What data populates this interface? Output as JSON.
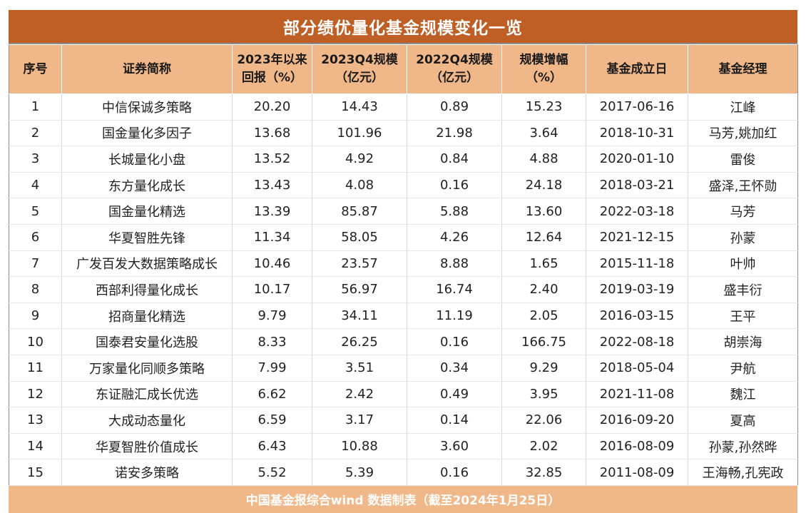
{
  "title": "部分绩优量化基金规模变化一览",
  "headers": [
    [
      "序号"
    ],
    [
      "证券简称"
    ],
    [
      "2023年以来",
      "回报（%）"
    ],
    [
      "2023Q4规模",
      "（亿元）"
    ],
    [
      "2022Q4规模",
      "（亿元）"
    ],
    [
      "规模增幅",
      "（%）"
    ],
    [
      "基金成立日"
    ],
    [
      "基金经理"
    ]
  ],
  "rows": [
    [
      "1",
      "中信保诚多策略",
      "20.20",
      "14.43",
      "0.89",
      "15.23",
      "2017-06-16",
      "江峰"
    ],
    [
      "2",
      "国金量化多因子",
      "13.68",
      "101.96",
      "21.98",
      "3.64",
      "2018-10-31",
      "马芳,姚加红"
    ],
    [
      "3",
      "长城量化小盘",
      "13.52",
      "4.92",
      "0.84",
      "4.88",
      "2020-01-10",
      "雷俊"
    ],
    [
      "4",
      "东方量化成长",
      "13.43",
      "4.08",
      "0.16",
      "24.18",
      "2018-03-21",
      "盛泽,王怀勋"
    ],
    [
      "5",
      "国金量化精选",
      "13.39",
      "85.87",
      "5.88",
      "13.60",
      "2022-03-18",
      "马芳"
    ],
    [
      "6",
      "华夏智胜先锋",
      "11.34",
      "58.05",
      "4.26",
      "12.64",
      "2021-12-15",
      "孙蒙"
    ],
    [
      "7",
      "广发百发大数据策略成长",
      "10.46",
      "23.57",
      "8.88",
      "1.65",
      "2015-11-18",
      "叶帅"
    ],
    [
      "8",
      "西部利得量化成长",
      "10.17",
      "56.97",
      "16.74",
      "2.40",
      "2019-03-19",
      "盛丰衍"
    ],
    [
      "9",
      "招商量化精选",
      "9.79",
      "34.11",
      "11.19",
      "2.05",
      "2016-03-15",
      "王平"
    ],
    [
      "10",
      "国泰君安量化选股",
      "8.33",
      "26.25",
      "0.16",
      "166.75",
      "2022-08-18",
      "胡崇海"
    ],
    [
      "11",
      "万家量化同顺多策略",
      "7.99",
      "3.51",
      "0.34",
      "9.29",
      "2018-05-04",
      "尹航"
    ],
    [
      "12",
      "东证融汇成长优选",
      "6.62",
      "2.42",
      "0.49",
      "3.95",
      "2021-11-08",
      "魏江"
    ],
    [
      "13",
      "大成动态量化",
      "6.59",
      "3.17",
      "0.14",
      "22.06",
      "2016-09-20",
      "夏高"
    ],
    [
      "14",
      "华夏智胜价值成长",
      "6.43",
      "10.88",
      "3.60",
      "2.02",
      "2016-08-09",
      "孙蒙,孙然晔"
    ],
    [
      "15",
      "诺安多策略",
      "5.52",
      "5.39",
      "0.16",
      "32.85",
      "2011-08-09",
      "王海畅,孔宪政"
    ]
  ],
  "footer": "中国基金报综合wind 数据制表（截至2024年1月25日）",
  "colors": {
    "title_bg": "#bf5f25",
    "header_bg": "#f0b889",
    "footer_bg": "#f0b889"
  }
}
